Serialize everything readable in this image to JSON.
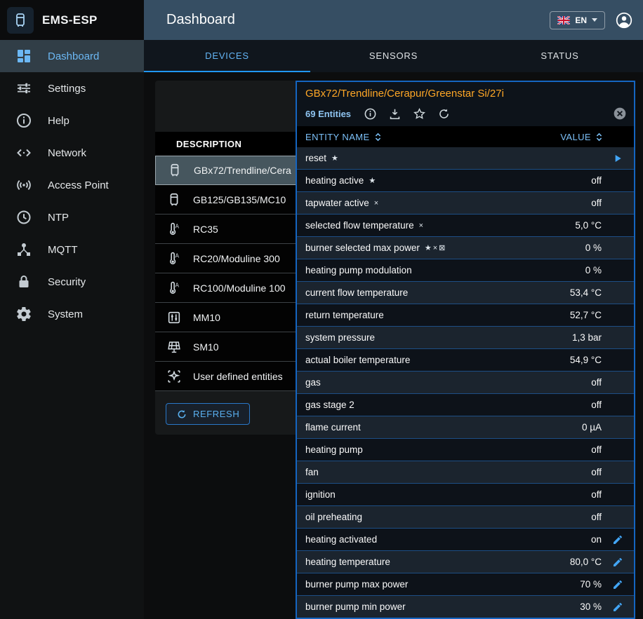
{
  "app": {
    "name": "EMS-ESP",
    "page_title": "Dashboard"
  },
  "colors": {
    "accent": "#2196f3",
    "header_bg": "#364e63",
    "panel_border": "#1565c0",
    "device_title_orange": "#ffa726",
    "active_text_blue": "#64b5f6"
  },
  "header": {
    "language_label": "EN",
    "flag": "uk-flag-icon"
  },
  "tabs": [
    {
      "label": "DEVICES",
      "active": true
    },
    {
      "label": "SENSORS",
      "active": false
    },
    {
      "label": "STATUS",
      "active": false
    }
  ],
  "sidebar": [
    {
      "label": "Dashboard",
      "icon": "dashboard-icon",
      "active": true
    },
    {
      "label": "Settings",
      "icon": "tune-icon",
      "active": false
    },
    {
      "label": "Help",
      "icon": "help-icon",
      "active": false
    },
    {
      "label": "Network",
      "icon": "network-icon",
      "active": false
    },
    {
      "label": "Access Point",
      "icon": "access-point-icon",
      "active": false
    },
    {
      "label": "NTP",
      "icon": "clock-icon",
      "active": false
    },
    {
      "label": "MQTT",
      "icon": "mqtt-hub-icon",
      "active": false
    },
    {
      "label": "Security",
      "icon": "lock-icon",
      "active": false
    },
    {
      "label": "System",
      "icon": "gear-icon",
      "active": false
    }
  ],
  "device_panel": {
    "column_header": "DESCRIPTION",
    "refresh_label": "REFRESH",
    "devices": [
      {
        "name": "GBx72/Trendline/Cera",
        "icon": "boiler-icon",
        "selected": true
      },
      {
        "name": "GB125/GB135/MC10",
        "icon": "boiler-icon",
        "selected": false
      },
      {
        "name": "RC35",
        "icon": "thermostat-icon",
        "selected": false
      },
      {
        "name": "RC20/Moduline 300",
        "icon": "thermostat-icon",
        "selected": false
      },
      {
        "name": "RC100/Moduline 100",
        "icon": "thermostat-icon",
        "selected": false
      },
      {
        "name": "MM10",
        "icon": "mixer-icon",
        "selected": false
      },
      {
        "name": "SM10",
        "icon": "solar-icon",
        "selected": false
      },
      {
        "name": "User defined entities",
        "icon": "custom-entities-icon",
        "selected": false
      }
    ]
  },
  "entity_panel": {
    "title": "GBx72/Trendline/Cerapur/Greenstar Si/27i",
    "entities_count": "69 Entities",
    "columns": {
      "name": "ENTITY NAME",
      "value": "VALUE"
    },
    "rows": [
      {
        "name": "reset",
        "flags": "★",
        "value": "",
        "action": "run",
        "editable": false
      },
      {
        "name": "heating active",
        "flags": "★",
        "value": "off",
        "editable": false
      },
      {
        "name": "tapwater active",
        "flags": "×",
        "value": "off",
        "editable": false
      },
      {
        "name": "selected flow temperature",
        "flags": "×",
        "value": "5,0 °C",
        "editable": false
      },
      {
        "name": "burner selected max power",
        "flags": "★×⊠",
        "value": "0 %",
        "editable": false
      },
      {
        "name": "heating pump modulation",
        "flags": "",
        "value": "0 %",
        "editable": false
      },
      {
        "name": "current flow temperature",
        "flags": "",
        "value": "53,4 °C",
        "editable": false
      },
      {
        "name": "return temperature",
        "flags": "",
        "value": "52,7 °C",
        "editable": false
      },
      {
        "name": "system pressure",
        "flags": "",
        "value": "1,3 bar",
        "editable": false
      },
      {
        "name": "actual boiler temperature",
        "flags": "",
        "value": "54,9 °C",
        "editable": false
      },
      {
        "name": "gas",
        "flags": "",
        "value": "off",
        "editable": false
      },
      {
        "name": "gas stage 2",
        "flags": "",
        "value": "off",
        "editable": false
      },
      {
        "name": "flame current",
        "flags": "",
        "value": "0 µA",
        "editable": false
      },
      {
        "name": "heating pump",
        "flags": "",
        "value": "off",
        "editable": false
      },
      {
        "name": "fan",
        "flags": "",
        "value": "off",
        "editable": false
      },
      {
        "name": "ignition",
        "flags": "",
        "value": "off",
        "editable": false
      },
      {
        "name": "oil preheating",
        "flags": "",
        "value": "off",
        "editable": false
      },
      {
        "name": "heating activated",
        "flags": "",
        "value": "on",
        "editable": true
      },
      {
        "name": "heating temperature",
        "flags": "",
        "value": "80,0 °C",
        "editable": true
      },
      {
        "name": "burner pump max power",
        "flags": "",
        "value": "70 %",
        "editable": true
      },
      {
        "name": "burner pump min power",
        "flags": "",
        "value": "30 %",
        "editable": true
      }
    ]
  }
}
